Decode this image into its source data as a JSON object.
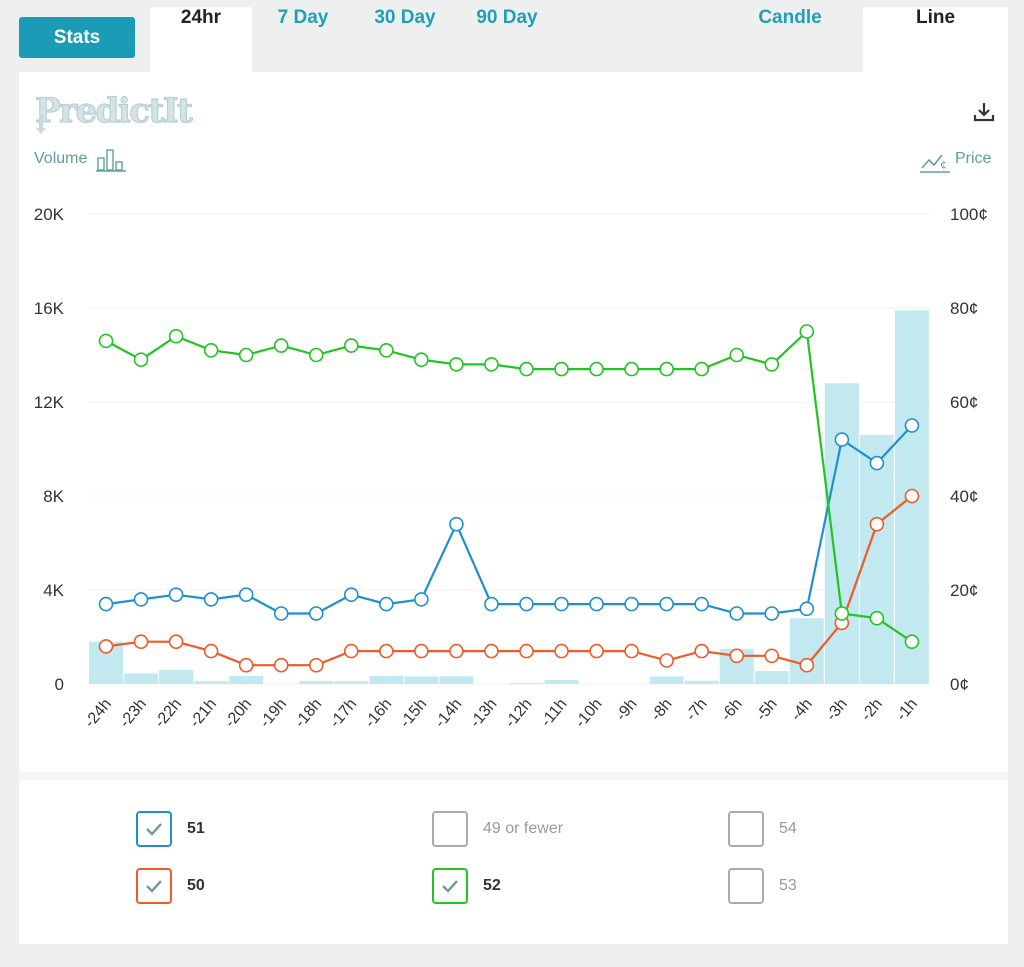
{
  "tabs": {
    "stats": "Stats",
    "ranges": [
      "24hr",
      "7 Day",
      "30 Day",
      "90 Day"
    ],
    "active_range": "24hr",
    "styles": [
      "Candle",
      "Line"
    ],
    "active_style": "Line"
  },
  "brand": {
    "logo": "PredictIt"
  },
  "axes": {
    "volume_label": "Volume",
    "price_label": "Price"
  },
  "colors": {
    "accent": "#1b9bb5",
    "volume_bar": "#c3e9f0",
    "grid": "#f0f0f0"
  },
  "chart_data": {
    "type": "line",
    "x": [
      "-24h",
      "-23h",
      "-22h",
      "-21h",
      "-20h",
      "-19h",
      "-18h",
      "-17h",
      "-16h",
      "-15h",
      "-14h",
      "-13h",
      "-12h",
      "-11h",
      "-10h",
      "-9h",
      "-8h",
      "-7h",
      "-6h",
      "-5h",
      "-4h",
      "-3h",
      "-2h",
      "-1h"
    ],
    "y_left": {
      "label": "Volume",
      "ticks": [
        "0",
        "4K",
        "8K",
        "12K",
        "16K",
        "20K"
      ],
      "range": [
        0,
        20000
      ]
    },
    "y_right": {
      "label": "Price",
      "ticks": [
        "0¢",
        "20¢",
        "40¢",
        "60¢",
        "80¢",
        "100¢"
      ],
      "range": [
        0,
        100
      ]
    },
    "volume": [
      1800,
      450,
      600,
      120,
      350,
      0,
      130,
      120,
      350,
      320,
      330,
      0,
      50,
      170,
      0,
      0,
      320,
      140,
      1500,
      550,
      2800,
      12800,
      10600,
      15900
    ],
    "series": [
      {
        "name": "51",
        "color": "#1f8fcf",
        "values": [
          17,
          18,
          19,
          18,
          19,
          15,
          15,
          19,
          17,
          18,
          34,
          17,
          17,
          17,
          17,
          17,
          17,
          17,
          15,
          15,
          16,
          52,
          47,
          55
        ]
      },
      {
        "name": "50",
        "color": "#ef5a28",
        "values": [
          8,
          9,
          9,
          7,
          4,
          4,
          4,
          7,
          7,
          7,
          7,
          7,
          7,
          7,
          7,
          7,
          5,
          7,
          6,
          6,
          4,
          13,
          34,
          40
        ]
      },
      {
        "name": "52",
        "color": "#21c521",
        "values": [
          73,
          69,
          74,
          71,
          70,
          72,
          70,
          72,
          71,
          69,
          68,
          68,
          67,
          67,
          67,
          67,
          67,
          67,
          70,
          68,
          75,
          15,
          14,
          9
        ]
      }
    ],
    "grid": true
  },
  "legend": [
    {
      "label": "51",
      "checked": true,
      "color": "#1f8fcf"
    },
    {
      "label": "49 or fewer",
      "checked": false,
      "color": "#aaaaaa"
    },
    {
      "label": "54",
      "checked": false,
      "color": "#aaaaaa"
    },
    {
      "label": "50",
      "checked": true,
      "color": "#ef5a28"
    },
    {
      "label": "52",
      "checked": true,
      "color": "#21c521"
    },
    {
      "label": "53",
      "checked": false,
      "color": "#aaaaaa"
    }
  ]
}
